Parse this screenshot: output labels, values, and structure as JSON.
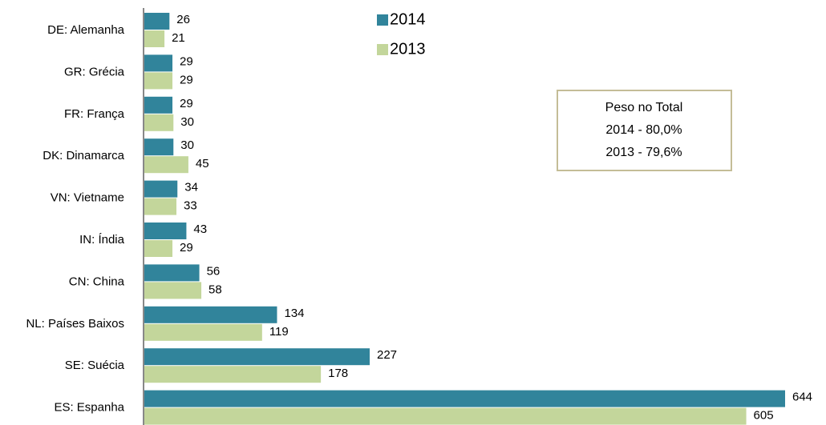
{
  "chart_data": {
    "type": "bar",
    "orientation": "horizontal",
    "categories": [
      "DE: Alemanha",
      "GR: Grécia",
      "FR: França",
      "DK: Dinamarca",
      "VN: Vietname",
      "IN: Índia",
      "CN: China",
      "NL: Países Baixos",
      "SE: Suécia",
      "ES: Espanha"
    ],
    "series": [
      {
        "name": "2014",
        "color": "#31849b",
        "values": [
          26,
          29,
          29,
          30,
          34,
          43,
          56,
          134,
          227,
          644
        ]
      },
      {
        "name": "2013",
        "color": "#c3d69b",
        "values": [
          21,
          29,
          30,
          45,
          33,
          29,
          58,
          119,
          178,
          605
        ]
      }
    ],
    "annotation": [
      "Peso no Total",
      "2014 - 80,0%",
      "2013 - 79,6%"
    ]
  }
}
